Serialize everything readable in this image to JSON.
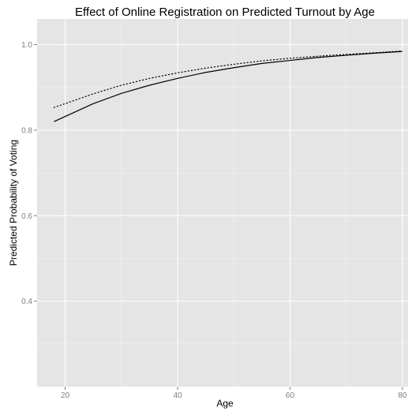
{
  "chart_data": {
    "type": "line",
    "title": "Effect of Online Registration on Predicted Turnout by Age",
    "xlabel": "Age",
    "ylabel": "Predicted Probability of Voting",
    "xlim": [
      15,
      81
    ],
    "ylim": [
      0.2,
      1.06
    ],
    "x_ticks": [
      20,
      40,
      60,
      80
    ],
    "x_tick_labels": [
      "20",
      "40",
      "60",
      "80"
    ],
    "y_ticks": [
      0.4,
      0.6,
      0.8,
      1.0
    ],
    "y_tick_labels": [
      "0.4",
      "0.6",
      "0.8",
      "1.0"
    ],
    "grid": true,
    "legend": "none",
    "x": [
      18,
      20,
      25,
      30,
      35,
      40,
      45,
      50,
      55,
      60,
      65,
      70,
      75,
      80
    ],
    "series": [
      {
        "style": "solid",
        "color": "#000000",
        "values": [
          0.82,
          0.832,
          0.862,
          0.886,
          0.905,
          0.921,
          0.935,
          0.946,
          0.956,
          0.963,
          0.97,
          0.975,
          0.98,
          0.984
        ]
      },
      {
        "style": "dotted",
        "color": "#000000",
        "values": [
          0.853,
          0.862,
          0.885,
          0.905,
          0.921,
          0.934,
          0.945,
          0.954,
          0.962,
          0.968,
          0.973,
          0.977,
          0.981,
          0.985
        ]
      }
    ]
  },
  "colors": {
    "panel_background": "#e5e5e5",
    "major_grid": "#ffffff",
    "minor_grid": "#f2f2f2",
    "tick_label": "#7f7f7f",
    "text": "#000000"
  }
}
